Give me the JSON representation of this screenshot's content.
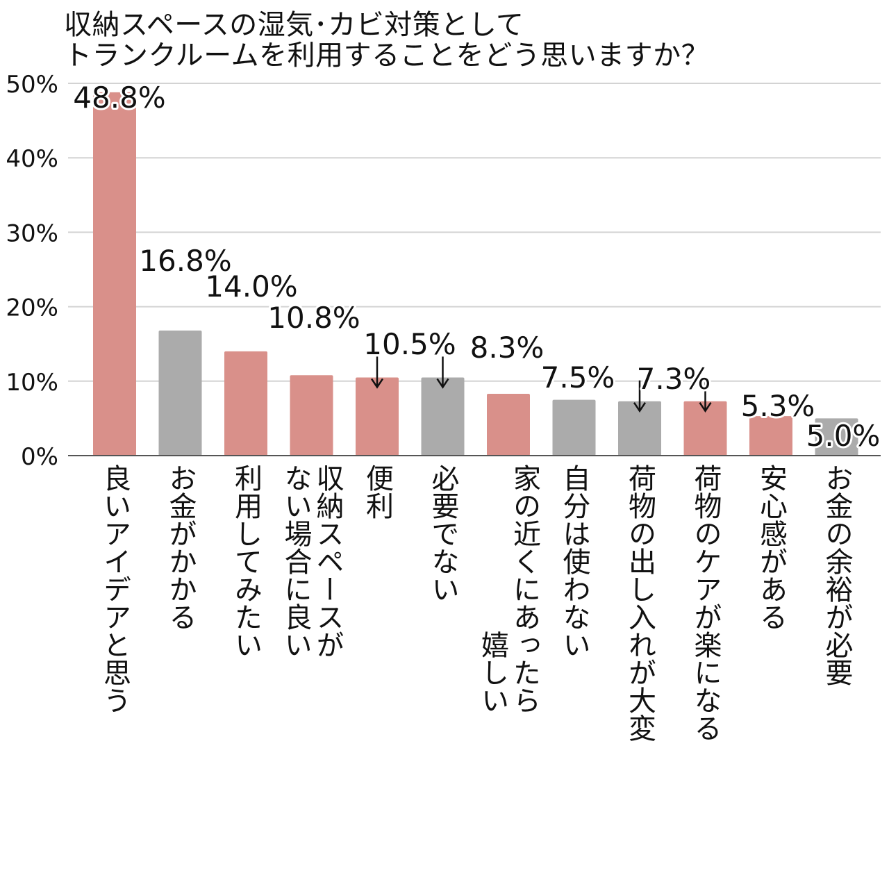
{
  "chart_data": {
    "type": "bar",
    "title_lines": [
      "収納スペースの湿気･カビ対策として",
      "トランクルームを利用することをどう思いますか？"
    ],
    "categories": [
      [
        "良いアイデアと思う"
      ],
      [
        "お金がかかる"
      ],
      [
        "利用してみたい"
      ],
      [
        "収納スペースが",
        "ない場合に良い"
      ],
      [
        "便利"
      ],
      [
        "必要でない"
      ],
      [
        "家の近くにあったら",
        "嬉しい"
      ],
      [
        "自分は使わない"
      ],
      [
        "荷物の出し入れが大変"
      ],
      [
        "荷物のケアが楽になる"
      ],
      [
        "安心感がある"
      ],
      [
        "お金の余裕が必要"
      ]
    ],
    "values": [
      48.8,
      16.8,
      14.0,
      10.8,
      10.5,
      10.5,
      8.3,
      7.5,
      7.3,
      7.3,
      5.3,
      5.0
    ],
    "value_labels": [
      "48.8%",
      "16.8%",
      "14.0%",
      "10.8%",
      "10.5%",
      "",
      "8.3%",
      "7.5%",
      "7.3%",
      "",
      "5.3%",
      "5.0%"
    ],
    "bar_colors": [
      "#d9908a",
      "#ababab",
      "#d9908a",
      "#d9908a",
      "#d9908a",
      "#ababab",
      "#d9908a",
      "#ababab",
      "#ababab",
      "#d9908a",
      "#d9908a",
      "#ababab"
    ],
    "arrows": [
      false,
      false,
      false,
      false,
      true,
      true,
      false,
      false,
      true,
      true,
      false,
      false
    ],
    "ylim": [
      0,
      50
    ],
    "yticks": [
      0,
      10,
      20,
      30,
      40,
      50
    ],
    "ytick_labels": [
      "0%",
      "10%",
      "20%",
      "30%",
      "40%",
      "50%"
    ],
    "grid": true,
    "colors": {
      "positive": "#d9908a",
      "negative": "#ababab",
      "grid": "#d3d3d3",
      "axis": "#555555"
    }
  }
}
